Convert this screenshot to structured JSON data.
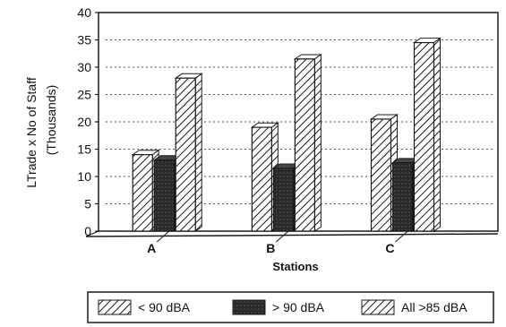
{
  "chart_data": {
    "type": "bar",
    "title": "",
    "xlabel": "Stations",
    "ylabel_lines": [
      "LTrade x No of Staff",
      "(Thousands)"
    ],
    "categories": [
      "A",
      "B",
      "C"
    ],
    "ylim": [
      0,
      40
    ],
    "yticks": [
      0,
      5,
      10,
      15,
      20,
      25,
      30,
      35,
      40
    ],
    "grid": true,
    "legend_position": "bottom",
    "series": [
      {
        "name": "< 90 dBA",
        "values": [
          14,
          19,
          20.5
        ],
        "pattern": "hatch-light"
      },
      {
        "name": "> 90 dBA",
        "values": [
          13,
          11.5,
          12.5
        ],
        "pattern": "solid-dark"
      },
      {
        "name": "All >85 dBA",
        "values": [
          28,
          31.5,
          34.5
        ],
        "pattern": "hatch-light"
      }
    ],
    "colors": {
      "ink": "#1a1a1a",
      "fill_light": "#ffffff",
      "fill_dark": "#2a2a2a",
      "grid": "#555555"
    }
  }
}
